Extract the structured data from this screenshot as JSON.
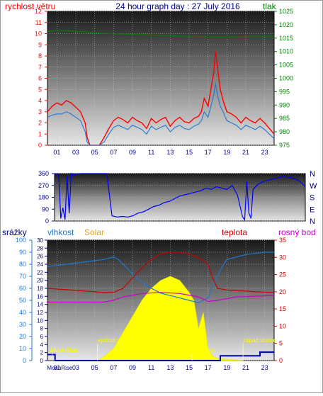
{
  "chart_data": [
    {
      "type": "line",
      "title": "24 hour graph day : 27 July 2016",
      "left_label": "rychlost větru",
      "right_label": "tlak",
      "x_ticks": [
        "01",
        "03",
        "05",
        "07",
        "09",
        "11",
        "13",
        "15",
        "17",
        "19",
        "21",
        "23"
      ],
      "ylim_left": [
        0,
        12
      ],
      "y_ticks_left": [
        0,
        1,
        2,
        3,
        4,
        5,
        6,
        7,
        8,
        9,
        10,
        11,
        12
      ],
      "ylim_right": [
        975,
        1025
      ],
      "y_ticks_right": [
        975,
        980,
        985,
        990,
        995,
        1000,
        1005,
        1010,
        1015,
        1020,
        1025
      ],
      "series": [
        {
          "role": "gust",
          "color": "#ff0000",
          "x": [
            0,
            0.5,
            1,
            1.5,
            2,
            2.5,
            3,
            3.5,
            4,
            4.2,
            4.5,
            5,
            5.5,
            6,
            6.5,
            7,
            7.5,
            8,
            8.5,
            9,
            9.5,
            10,
            10.5,
            11,
            11.5,
            12,
            12.5,
            13,
            13.5,
            14,
            14.5,
            15,
            15.5,
            16,
            16.3,
            16.6,
            17,
            17.3,
            17.6,
            17.8,
            18,
            18.3,
            18.6,
            19,
            19.5,
            20,
            20.5,
            21,
            21.5,
            22,
            22.5,
            23,
            23.5,
            24
          ],
          "values": [
            3,
            3.5,
            3.8,
            3.6,
            4,
            3.8,
            3.4,
            3,
            2,
            0.7,
            0,
            0,
            0,
            0.7,
            1.5,
            2.2,
            2.5,
            2.3,
            2,
            2.5,
            2.2,
            2,
            1.5,
            2.4,
            2,
            2.3,
            2.5,
            1.7,
            2.2,
            2.5,
            2.1,
            2,
            2.4,
            2.6,
            3,
            4.2,
            3.5,
            5,
            6.5,
            8.4,
            7,
            5,
            4,
            3,
            2.8,
            2.5,
            2,
            2.5,
            2.2,
            2,
            2.4,
            2,
            1.5,
            1
          ]
        },
        {
          "role": "average",
          "color": "#1e78d2",
          "x": [
            0,
            0.5,
            1,
            1.5,
            2,
            2.5,
            3,
            3.5,
            4,
            4.2,
            4.5,
            5,
            5.5,
            6,
            6.5,
            7,
            7.5,
            8,
            8.5,
            9,
            9.5,
            10,
            10.5,
            11,
            11.5,
            12,
            12.5,
            13,
            13.5,
            14,
            14.5,
            15,
            15.5,
            16,
            16.3,
            16.6,
            17,
            17.3,
            17.6,
            17.8,
            18,
            18.3,
            18.6,
            19,
            19.5,
            20,
            20.5,
            21,
            21.5,
            22,
            22.5,
            23,
            23.5,
            24
          ],
          "values": [
            2.5,
            2.7,
            2.8,
            2.8,
            3,
            2.8,
            2.5,
            2.2,
            1.2,
            0.3,
            0,
            0,
            0,
            0.3,
            1,
            1.6,
            1.8,
            1.6,
            1.4,
            1.8,
            1.6,
            1.4,
            1,
            1.7,
            1.4,
            1.6,
            1.8,
            1.2,
            1.6,
            1.8,
            1.5,
            1.4,
            1.7,
            1.9,
            2.2,
            3,
            2.5,
            3.5,
            4.5,
            5.5,
            4.5,
            3.5,
            3,
            2.2,
            2,
            1.8,
            1.4,
            1.8,
            1.6,
            1.4,
            1.7,
            1.4,
            1,
            0.6
          ]
        },
        {
          "role": "pressure",
          "axis": "right",
          "color": "#008000",
          "x": [
            0,
            1,
            2,
            3,
            4,
            5,
            6,
            7,
            8,
            9,
            10,
            11,
            12,
            13,
            14,
            15,
            16,
            17,
            18,
            19,
            20,
            21,
            22,
            23,
            24
          ],
          "values": [
            1017.5,
            1017.8,
            1017.8,
            1017.5,
            1017.3,
            1017,
            1016.8,
            1016.6,
            1016.5,
            1016.4,
            1016.3,
            1016.2,
            1016,
            1015.9,
            1015.8,
            1015.7,
            1015.6,
            1015.5,
            1015.4,
            1015.4,
            1015.5,
            1015.6,
            1015.7,
            1015.7,
            1015.7
          ]
        }
      ]
    },
    {
      "type": "line",
      "left_ticks": [
        0,
        90,
        180,
        270,
        360
      ],
      "right_labels": [
        "N",
        "W",
        "S",
        "E",
        "N"
      ],
      "ylim": [
        0,
        360
      ],
      "series": [
        {
          "role": "direction",
          "color": "#0000ff",
          "x": [
            0,
            0.4,
            0.6,
            0.8,
            1,
            1.2,
            1.4,
            1.6,
            1.8,
            2,
            2.5,
            3,
            3.5,
            4,
            4.5,
            5,
            5.5,
            6,
            6.5,
            7,
            7.5,
            8,
            8.5,
            9,
            9.5,
            10,
            10.5,
            11,
            11.5,
            12,
            12.5,
            13,
            13.5,
            14,
            14.5,
            15,
            15.5,
            16,
            16.5,
            17,
            17.5,
            18,
            18.2,
            18.4,
            18.6,
            18.8,
            19,
            19.5,
            20,
            20.5,
            21,
            21.5,
            22,
            22.5,
            23,
            23.5,
            24
          ],
          "values": [
            360,
            350,
            20,
            100,
            10,
            340,
            60,
            360,
            350,
            355,
            360,
            360,
            360,
            360,
            360,
            360,
            40,
            30,
            35,
            30,
            40,
            60,
            70,
            90,
            110,
            120,
            140,
            150,
            170,
            190,
            200,
            210,
            220,
            230,
            250,
            240,
            260,
            250,
            240,
            270,
            200,
            30,
            10,
            300,
            60,
            20,
            240,
            280,
            300,
            310,
            320,
            330,
            340,
            330,
            320,
            300,
            260
          ]
        }
      ]
    },
    {
      "type": "line",
      "left_labels": [
        "srážky",
        "vlhkost",
        "Solar"
      ],
      "right_labels": [
        "teplota",
        "rosný bod"
      ],
      "rain_ticks": [
        0,
        10,
        20,
        30,
        40,
        50,
        60,
        70,
        80,
        90,
        100
      ],
      "solar_ticks": [
        0,
        2,
        4,
        6,
        8,
        10,
        12,
        14,
        16,
        18,
        20,
        22,
        24,
        26,
        28,
        30
      ],
      "temp_ticks": [
        0,
        5,
        10,
        15,
        20,
        25,
        30,
        35
      ],
      "x_ticks": [
        "01",
        "03",
        "05",
        "07",
        "09",
        "11",
        "13",
        "15",
        "17",
        "19",
        "21",
        "23"
      ],
      "annotations": [
        {
          "text": "východ slunce",
          "hour": 5.3
        },
        {
          "text": "západ slunce",
          "hour": 20.7
        },
        {
          "text": "Moon Rise",
          "hour": 0.5
        },
        {
          "text": "Moon Set",
          "hour": 15.3
        },
        {
          "text": "MoonRise",
          "hour": 1.3,
          "axis": "x"
        }
      ],
      "series": [
        {
          "role": "humidity",
          "axis": "rain",
          "color": "#1e78d2",
          "x": [
            0,
            1,
            2,
            3,
            4,
            5,
            6,
            7,
            7.5,
            8,
            9,
            10,
            11,
            12,
            13,
            14,
            15,
            16,
            16.5,
            17,
            17.5,
            18,
            18.5,
            19,
            20,
            21,
            22,
            23,
            24
          ],
          "values": [
            78,
            79,
            80,
            81,
            82,
            83,
            84,
            86,
            84,
            80,
            72,
            65,
            60,
            56,
            54,
            52,
            50,
            48,
            50,
            52,
            62,
            70,
            78,
            84,
            86,
            88,
            89,
            90,
            90
          ]
        },
        {
          "role": "temperature",
          "axis": "temp",
          "color": "#cc0000",
          "x": [
            0,
            1,
            2,
            3,
            4,
            5,
            6,
            7,
            8,
            9,
            10,
            11,
            12,
            13,
            14,
            15,
            16,
            17,
            17.5,
            18,
            19,
            20,
            21,
            22,
            23,
            24
          ],
          "values": [
            21,
            20.8,
            20.6,
            20.4,
            20.2,
            20,
            19.8,
            19.8,
            21,
            24,
            27,
            29.5,
            31,
            31.5,
            31.5,
            31,
            30,
            28,
            24,
            21,
            20.5,
            20.3,
            20.2,
            20,
            19.9,
            19.8
          ]
        },
        {
          "role": "dew_point",
          "axis": "temp",
          "color": "#cc00cc",
          "x": [
            0,
            2,
            4,
            6,
            7,
            8,
            10,
            12,
            14,
            16,
            17,
            18,
            20,
            22,
            24
          ],
          "values": [
            17,
            17,
            17,
            17,
            17.5,
            18.5,
            19.5,
            19.8,
            19.5,
            18.5,
            17.2,
            17.5,
            18.5,
            18.7,
            19
          ]
        },
        {
          "role": "solar",
          "axis": "solar",
          "color": "#ffff00",
          "x": [
            5.3,
            6,
            7,
            8,
            9,
            10,
            11,
            12,
            13,
            14,
            15,
            15.5,
            16,
            16.5,
            17,
            17.5,
            18,
            19,
            20,
            20.7
          ],
          "values": [
            0,
            1,
            3,
            7,
            11,
            15,
            18,
            20,
            21,
            20,
            17,
            15,
            8,
            12,
            3,
            1,
            0.5,
            0.3,
            0.1,
            0
          ]
        },
        {
          "role": "rain",
          "axis": "rain",
          "color": "#0000aa",
          "x": [
            0,
            0.8,
            0.8,
            18.3,
            18.3,
            22.5,
            22.5,
            24
          ],
          "values": [
            5,
            5,
            0,
            0,
            4,
            4,
            7,
            7
          ]
        }
      ]
    }
  ]
}
